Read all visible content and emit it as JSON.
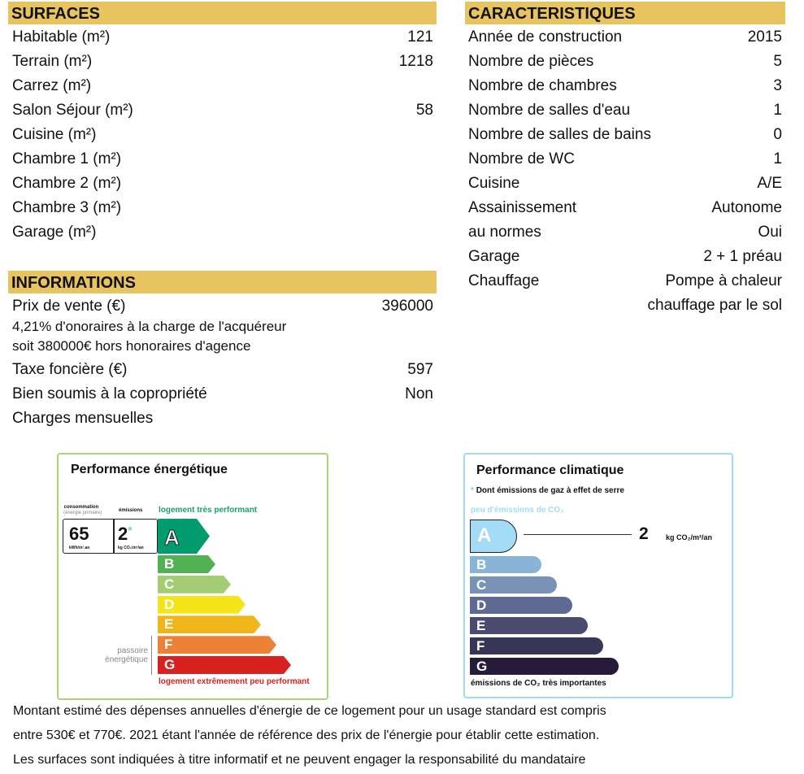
{
  "surfaces": {
    "title": "SURFACES",
    "rows": [
      {
        "label": "Habitable (m²)",
        "value": "121"
      },
      {
        "label": "Terrain (m²)",
        "value": "1218"
      },
      {
        "label": "Carrez (m²)",
        "value": ""
      },
      {
        "label": "Salon Séjour (m²)",
        "value": "58"
      },
      {
        "label": "Cuisine (m²)",
        "value": ""
      },
      {
        "label": "Chambre 1 (m²)",
        "value": ""
      },
      {
        "label": "Chambre 2 (m²)",
        "value": ""
      },
      {
        "label": "Chambre 3 (m²)",
        "value": ""
      },
      {
        "label": "Garage (m²)",
        "value": ""
      }
    ]
  },
  "informations": {
    "title": "INFORMATIONS",
    "price_label": "Prix de vente (€)",
    "price_value": "396000",
    "fee_line1": "4,21% d'onoraires à la charge de l'acquéreur",
    "fee_line2": "soit 380000€ hors honoraires d'agence",
    "rows": [
      {
        "label": "Taxe foncière (€)",
        "value": "597"
      },
      {
        "label": "Bien soumis à la copropriété",
        "value": "Non"
      },
      {
        "label": "Charges mensuelles",
        "value": ""
      }
    ]
  },
  "caracteristiques": {
    "title": "CARACTERISTIQUES",
    "rows": [
      {
        "label": "Année de construction",
        "value": "2015"
      },
      {
        "label": "Nombre de pièces",
        "value": "5"
      },
      {
        "label": "Nombre de chambres",
        "value": "3"
      },
      {
        "label": "Nombre de salles d'eau",
        "value": "1"
      },
      {
        "label": "Nombre de salles de bains",
        "value": "0"
      },
      {
        "label": "Nombre de WC",
        "value": "1"
      },
      {
        "label": "Cuisine",
        "value": "A/E"
      },
      {
        "label": "Assainissement",
        "value": "Autonome"
      },
      {
        "label": "au normes",
        "value": "Oui"
      },
      {
        "label": "Garage",
        "value": "2 + 1 préau"
      },
      {
        "label": "Chauffage",
        "value": "Pompe à chaleur"
      },
      {
        "label": "",
        "value": "chauffage par le sol"
      }
    ]
  },
  "energy": {
    "title": "Performance énergétique",
    "consumption_label": "consommation",
    "consumption_sub": "(énergie primaire)",
    "emissions_label": "émissions",
    "consumption_value": "65",
    "consumption_unit": "kWh/m².an",
    "emissions_value": "2",
    "emissions_star": "*",
    "emissions_unit": "kg CO₂/m²/an",
    "top_label": "logement très performant",
    "bottom_label": "logement extrêmement peu performant",
    "passoire": "passoire énergétique",
    "rating": "A",
    "classes": [
      {
        "letter": "A",
        "color": "#009c6d"
      },
      {
        "letter": "B",
        "color": "#52b153"
      },
      {
        "letter": "C",
        "color": "#a3cc74"
      },
      {
        "letter": "D",
        "color": "#f3e51a"
      },
      {
        "letter": "E",
        "color": "#f0b519"
      },
      {
        "letter": "F",
        "color": "#eb8235"
      },
      {
        "letter": "G",
        "color": "#d7221f"
      }
    ]
  },
  "climate": {
    "title": "Performance climatique",
    "subtitle": "Dont émissions de gaz à effet de serre",
    "star": "*",
    "top_label": "peu d'émissions de CO₂",
    "bottom_label": "émissions de CO₂ très importantes",
    "value": "2",
    "unit": "kg CO₂/m²/an",
    "rating": "A",
    "classes": [
      {
        "letter": "A",
        "color": "#a4dbf7"
      },
      {
        "letter": "B",
        "color": "#8ab4d6"
      },
      {
        "letter": "C",
        "color": "#7893b5"
      },
      {
        "letter": "D",
        "color": "#5f6a93"
      },
      {
        "letter": "E",
        "color": "#4b4b70"
      },
      {
        "letter": "F",
        "color": "#393556"
      },
      {
        "letter": "G",
        "color": "#261c3a"
      }
    ]
  },
  "notes": [
    "Montant estimé des dépenses annuelles d'énergie de ce logement pour un usage standard est compris",
    "entre 530€ et 770€. 2021 étant l'année de référence des prix de l'énergie pour établir cette estimation.",
    "Les surfaces sont indiquées à titre informatif et ne peuvent engager la responsabilité du mandataire"
  ]
}
